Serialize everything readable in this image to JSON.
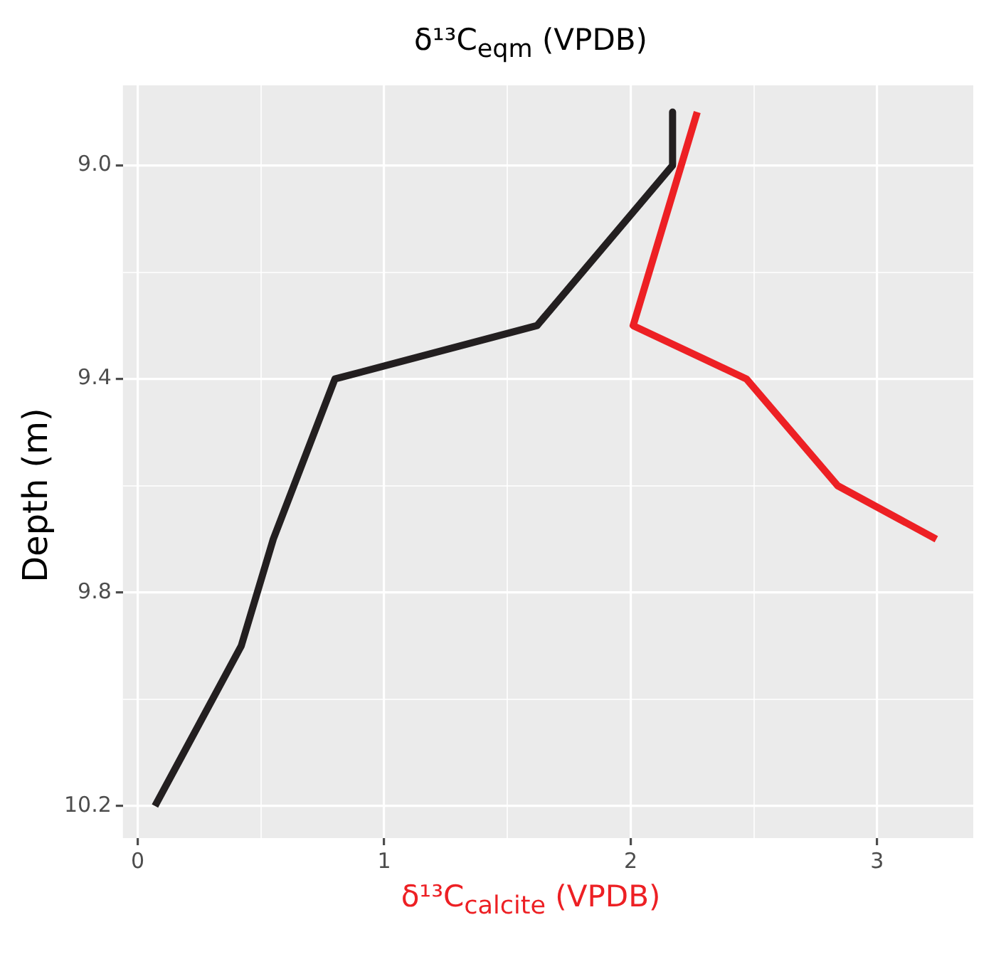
{
  "chart_data": {
    "type": "line",
    "title": "δ¹³C$_{eqm}$ (VPDB)",
    "xlabel": "δ¹³C$_{calcite}$ (VPDB)",
    "ylabel": "Depth (m)",
    "series": [
      {
        "color": "#231f20",
        "x": [
          2.17,
          2.17,
          1.62,
          0.8,
          0.55,
          0.42,
          0.07
        ],
        "values": [
          8.9,
          9.0,
          9.3,
          9.4,
          9.7,
          9.9,
          10.2
        ]
      },
      {
        "color": "#ed2024",
        "x": [
          2.27,
          2.01,
          2.47,
          2.84,
          3.24
        ],
        "values": [
          8.9,
          9.3,
          9.4,
          9.6,
          9.7
        ]
      }
    ],
    "xlim": [
      -0.06,
      3.39
    ],
    "xticks": [
      0,
      {
        "value": 0.5,
        "label": null
      },
      1,
      {
        "value": 1.5,
        "label": null
      },
      2,
      {
        "value": 2.5,
        "label": null
      },
      3
    ],
    "ylim": [
      10.26,
      8.85
    ],
    "yticks": [
      {
        "value": 9,
        "label": "9.0"
      },
      {
        "value": 9.2,
        "label": null
      },
      {
        "value": 9.4,
        "label": "9.4"
      },
      {
        "value": 9.6,
        "label": null
      },
      {
        "value": 9.8,
        "label": "9.8"
      },
      {
        "value": 10,
        "label": null
      },
      {
        "value": 10.2,
        "label": "10.2"
      }
    ],
    "grid": true,
    "legend": false,
    "marker": "none",
    "line_style": "solid"
  }
}
